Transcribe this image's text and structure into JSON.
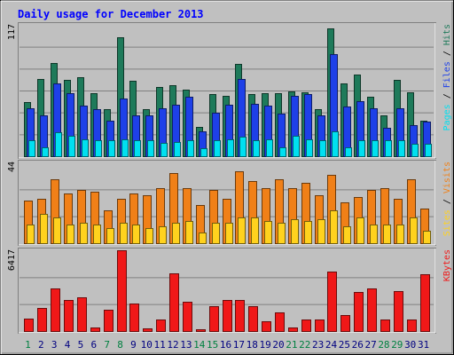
{
  "chart_data": [
    {
      "type": "bar",
      "title": "Daily usage for December 2013",
      "max_label": "117",
      "right_label": [
        "Pages",
        "Files",
        "Hits"
      ],
      "categories": [
        "1",
        "2",
        "3",
        "4",
        "5",
        "6",
        "7",
        "8",
        "9",
        "10",
        "11",
        "12",
        "13",
        "14",
        "15",
        "16",
        "17",
        "18",
        "19",
        "20",
        "21",
        "22",
        "23",
        "24",
        "25",
        "26",
        "27",
        "28",
        "29",
        "30",
        "31"
      ],
      "weekend_days": [
        1,
        7,
        8,
        14,
        15,
        21,
        22,
        28,
        29
      ],
      "ylim": [
        0,
        117
      ],
      "series": [
        {
          "name": "Hits",
          "color": "#1e7a5a",
          "values": [
            48,
            69,
            83,
            68,
            70,
            56,
            42,
            106,
            67,
            42,
            62,
            63,
            59,
            26,
            55,
            54,
            82,
            55,
            56,
            56,
            58,
            57,
            42,
            114,
            65,
            73,
            53,
            36,
            68,
            57,
            32
          ]
        },
        {
          "name": "Files",
          "color": "#1e40e8",
          "values": [
            43,
            36,
            65,
            56,
            45,
            42,
            32,
            51,
            36,
            36,
            43,
            46,
            53,
            22,
            39,
            46,
            69,
            47,
            45,
            38,
            54,
            55,
            36,
            91,
            44,
            49,
            43,
            25,
            43,
            28,
            31
          ]
        },
        {
          "name": "Pages",
          "color": "#00e0f0",
          "values": [
            14,
            8,
            21,
            18,
            15,
            14,
            14,
            15,
            14,
            14,
            12,
            13,
            14,
            7,
            14,
            15,
            17,
            14,
            15,
            8,
            18,
            15,
            14,
            22,
            8,
            14,
            14,
            14,
            14,
            11,
            11
          ]
        }
      ]
    },
    {
      "type": "bar",
      "max_label": "44",
      "right_label": [
        "Sites",
        "Visits"
      ],
      "ylim": [
        0,
        44
      ],
      "series": [
        {
          "name": "Visits",
          "color": "#f08018",
          "values": [
            23,
            24,
            35,
            27,
            29,
            28,
            18,
            24,
            27,
            26,
            30,
            38,
            30,
            21,
            29,
            24,
            39,
            34,
            30,
            35,
            30,
            33,
            26,
            37,
            22,
            25,
            29,
            30,
            24,
            35,
            19
          ]
        },
        {
          "name": "Sites",
          "color": "#ffd21e",
          "values": [
            10,
            16,
            14,
            10,
            11,
            10,
            8,
            11,
            10,
            8,
            9,
            11,
            12,
            6,
            11,
            11,
            14,
            14,
            12,
            11,
            13,
            12,
            13,
            18,
            9,
            14,
            10,
            10,
            10,
            14,
            7
          ]
        }
      ]
    },
    {
      "type": "bar",
      "max_label": "6417",
      "right_label": [
        "KBytes"
      ],
      "ylim": [
        0,
        6417
      ],
      "series": [
        {
          "name": "KBytes",
          "color": "#f01818",
          "values": [
            1000,
            1800,
            3400,
            2500,
            2700,
            300,
            1700,
            6417,
            2200,
            200,
            900,
            4600,
            2300,
            150,
            2000,
            2500,
            2500,
            2000,
            800,
            1500,
            300,
            900,
            900,
            4700,
            1300,
            3100,
            3400,
            900,
            3200,
            900,
            4500
          ]
        }
      ]
    }
  ],
  "colors": {
    "background": "#c0c0c0",
    "title": "#0000ff",
    "weekend_label": "#008040",
    "weekday_label": "#000080"
  }
}
